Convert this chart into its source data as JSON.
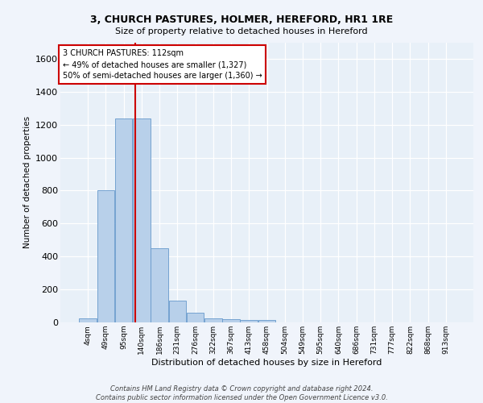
{
  "title1": "3, CHURCH PASTURES, HOLMER, HEREFORD, HR1 1RE",
  "title2": "Size of property relative to detached houses in Hereford",
  "xlabel": "Distribution of detached houses by size in Hereford",
  "ylabel": "Number of detached properties",
  "bin_labels": [
    "4sqm",
    "49sqm",
    "95sqm",
    "140sqm",
    "186sqm",
    "231sqm",
    "276sqm",
    "322sqm",
    "367sqm",
    "413sqm",
    "458sqm",
    "504sqm",
    "549sqm",
    "595sqm",
    "640sqm",
    "686sqm",
    "731sqm",
    "777sqm",
    "822sqm",
    "868sqm",
    "913sqm"
  ],
  "bar_values": [
    25,
    800,
    1240,
    1240,
    450,
    130,
    60,
    25,
    20,
    15,
    15,
    0,
    0,
    0,
    0,
    0,
    0,
    0,
    0,
    0,
    0
  ],
  "bar_color": "#b8d0ea",
  "bar_edge_color": "#6699cc",
  "red_line_x": 2.63,
  "ylim": [
    0,
    1700
  ],
  "yticks": [
    0,
    200,
    400,
    600,
    800,
    1000,
    1200,
    1400,
    1600
  ],
  "annotation_text": "3 CHURCH PASTURES: 112sqm\n← 49% of detached houses are smaller (1,327)\n50% of semi-detached houses are larger (1,360) →",
  "annotation_box_color": "#ffffff",
  "annotation_box_edge": "#cc0000",
  "footer_text": "Contains HM Land Registry data © Crown copyright and database right 2024.\nContains public sector information licensed under the Open Government Licence v3.0.",
  "background_color": "#e8f0f8",
  "fig_background_color": "#f0f4fb",
  "grid_color": "#ffffff"
}
